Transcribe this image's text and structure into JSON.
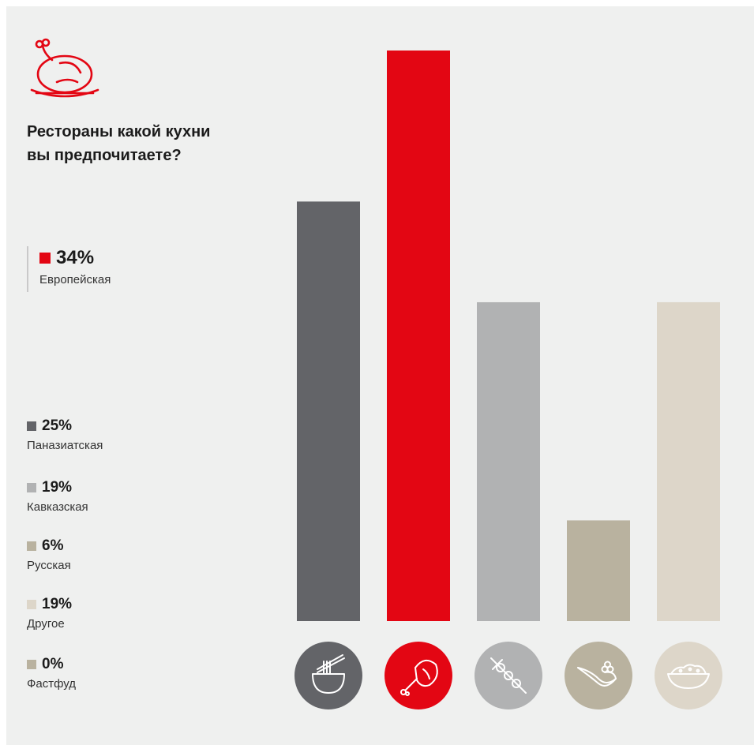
{
  "title_line1": "Рестораны какой кухни",
  "title_line2": "вы предпочитаете?",
  "highlight": {
    "value": "34%",
    "label": "Европейская",
    "color": "#e30613"
  },
  "legend": [
    {
      "value": "25%",
      "label": "Паназиатская",
      "color": "#636468"
    },
    {
      "value": "19%",
      "label": "Кавказская",
      "color": "#b1b2b3"
    },
    {
      "value": "6%",
      "label": "Русская",
      "color": "#b9b29f"
    },
    {
      "value": "19%",
      "label": "Другое",
      "color": "#ddd6c9"
    },
    {
      "value": "0%",
      "label": "Фастфуд",
      "color": "#b9b29f"
    }
  ],
  "icons": [
    "noodle-bowl-icon",
    "ham-leg-icon",
    "shashlik-skewer-icon",
    "caviar-spoon-icon",
    "salad-bowl-icon",
    "roast-chicken-icon"
  ],
  "chart_data": {
    "type": "bar",
    "categories": [
      "Паназиатская",
      "Европейская",
      "Кавказская",
      "Русская",
      "Другое"
    ],
    "values": [
      25,
      34,
      19,
      6,
      19
    ],
    "colors": [
      "#636468",
      "#e30613",
      "#b1b2b3",
      "#b9b29f",
      "#ddd6c9"
    ],
    "ylim": [
      0,
      34
    ],
    "grid": false
  }
}
